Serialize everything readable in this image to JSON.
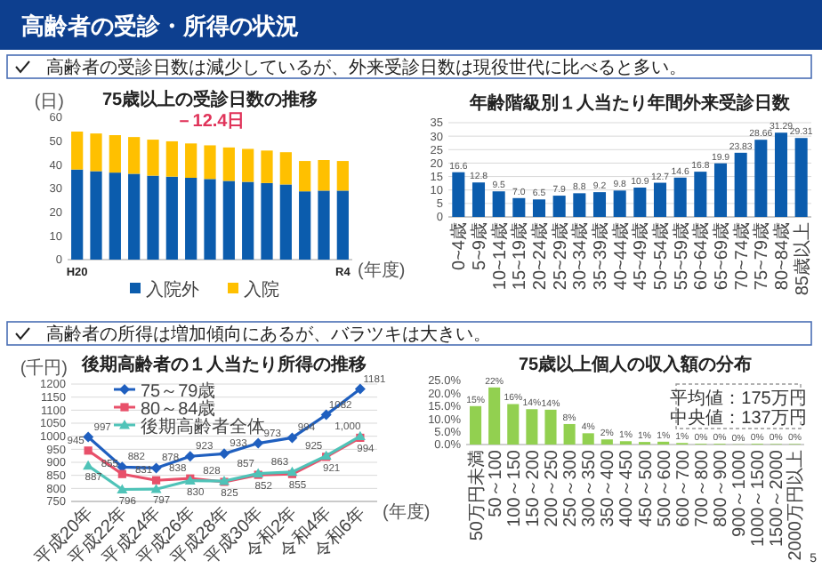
{
  "chart_data": [
    {
      "type": "other",
      "title": "高齢者の受診・所得の状況",
      "annotations": [
        "高齢者の受診日数は減少しているが、外来受診日数は現役世代に比べると多い。",
        "高齢者の所得は増加傾向にあるが、バラツキは大きい。",
        "5"
      ]
    },
    {
      "type": "bar",
      "title": "75歳以上の受診日数の推移",
      "ylabel": "(日)",
      "xlabel": "(年度)",
      "stacked": true,
      "legend": "bottom",
      "grid": false,
      "categories": [
        "H20",
        null,
        null,
        null,
        null,
        null,
        null,
        null,
        null,
        null,
        null,
        null,
        null,
        null,
        "R4"
      ],
      "series": [
        {
          "name": "入院外",
          "color": "#0b5cad",
          "values": [
            38,
            37.3,
            36.7,
            36.2,
            35.4,
            35,
            34.5,
            34,
            33.2,
            32.8,
            32.3,
            31.7,
            28.8,
            29.1,
            29.1
          ]
        },
        {
          "name": "入院",
          "color": "#ffc000",
          "values": [
            16,
            15.9,
            15.8,
            15.5,
            15.2,
            14.9,
            14.5,
            14.2,
            14.1,
            13.9,
            13.7,
            13.6,
            12.8,
            12.9,
            12.5
          ]
        }
      ],
      "ylim": [
        0,
        60
      ],
      "yticks": [
        0,
        10,
        20,
        30,
        40,
        50,
        60
      ],
      "annotations": [
        "－12.4日"
      ]
    },
    {
      "type": "bar",
      "title": "年齢階級別１人当たり年間外来受診日数",
      "grid": "y",
      "categories": [
        "0~4歳",
        "5~9歳",
        "10~14歳",
        "15~19歳",
        "20~24歳",
        "25~29歳",
        "30~34歳",
        "35~39歳",
        "40~44歳",
        "45~49歳",
        "50~54歳",
        "55~59歳",
        "60~64歳",
        "65~69歳",
        "70~74歳",
        "75~79歳",
        "80~84歳",
        "85歳以上"
      ],
      "values": [
        16.6,
        12.8,
        9.5,
        7.0,
        6.5,
        7.9,
        8.8,
        9.2,
        9.8,
        10.9,
        12.7,
        14.6,
        16.8,
        19.9,
        23.83,
        28.66,
        31.29,
        29.31
      ],
      "value_labels": [
        "16.6",
        "12.8",
        "9.5",
        "7.0",
        "6.5",
        "7.9",
        "8.8",
        "9.2",
        "9.8",
        "10.9",
        "12.7",
        "14.6",
        "16.8",
        "19.9",
        "23.83",
        "28.66",
        "31.29",
        "29.31"
      ],
      "color": "#0b5cad",
      "ylim": [
        0,
        35
      ],
      "yticks": [
        0,
        5,
        10,
        15,
        20,
        25,
        30,
        35
      ]
    },
    {
      "type": "line",
      "title": "後期高齢者の１人当たり所得の推移",
      "ylabel": "(千円)",
      "xlabel": "(年度)",
      "grid": "y",
      "legend": "top left",
      "categories": [
        "平成20年",
        "平成22年",
        "平成24年",
        "平成26年",
        "平成28年",
        "平成30年",
        "令和2年",
        "令和4年",
        "令和6年"
      ],
      "series": [
        {
          "name": "75～79歳",
          "color": "#1f5fbf",
          "marker": "diamond",
          "values": [
            997,
            882,
            878,
            923,
            933,
            973,
            994,
            1082,
            1181
          ],
          "value_labels": [
            "997",
            "882",
            "878",
            "923",
            "933",
            "973",
            "994",
            "1082",
            "1181"
          ]
        },
        {
          "name": "80～84歳",
          "color": "#e8506a",
          "marker": "square",
          "values": [
            945,
            855,
            831,
            838,
            825,
            852,
            855,
            921,
            994
          ],
          "value_labels": [
            "945",
            "855",
            "831",
            "838",
            "825",
            "852",
            "855",
            "921",
            "994"
          ]
        },
        {
          "name": "後期高齢者全体",
          "color": "#4fc3b8",
          "marker": "triangle",
          "values": [
            887,
            796,
            797,
            830,
            828,
            857,
            863,
            925,
            1000
          ],
          "value_labels": [
            "887",
            "796",
            "797",
            "830",
            "828",
            "857",
            "863",
            "925",
            "1,000"
          ]
        }
      ],
      "ylim": [
        750,
        1200
      ],
      "yticks": [
        750,
        800,
        850,
        900,
        950,
        1000,
        1050,
        1100,
        1150,
        1200
      ]
    },
    {
      "type": "bar",
      "title": "75歳以上個人の収入額の分布",
      "grid": false,
      "categories": [
        "50万円未満",
        "50～100",
        "100～150",
        "150～200",
        "200～250",
        "250～300",
        "300～350",
        "350～400",
        "400～450",
        "450～500",
        "500～600",
        "600～700",
        "700～800",
        "800～900",
        "900～1000",
        "1000～1500",
        "1500～2000",
        "2000万円以上"
      ],
      "values": [
        15,
        22.3,
        15.8,
        13.8,
        13.6,
        8,
        4.4,
        2,
        1.3,
        1,
        1.1,
        0.6,
        0.3,
        0.3,
        0.1,
        0.3,
        0.2,
        0.2
      ],
      "value_labels": [
        "15%",
        "22%",
        "16%",
        "14%",
        "14%",
        "8%",
        "4%",
        "2%",
        "1%",
        "1%",
        "1%",
        "1%",
        "0%",
        "0%",
        "0%",
        "0%",
        "0%",
        "0%"
      ],
      "color": "#92d050",
      "ylim": [
        0,
        25
      ],
      "yticks": [
        {
          "value": 0,
          "label": "0.0%"
        },
        {
          "value": 5,
          "label": "5.0%"
        },
        {
          "value": 10,
          "label": "10.0%"
        },
        {
          "value": 15,
          "label": "15.0%"
        },
        {
          "value": 20,
          "label": "20.0%"
        },
        {
          "value": 25,
          "label": "25.0%"
        }
      ],
      "annotations": [
        "平均値：175万円",
        "中央値：137万円"
      ]
    }
  ]
}
